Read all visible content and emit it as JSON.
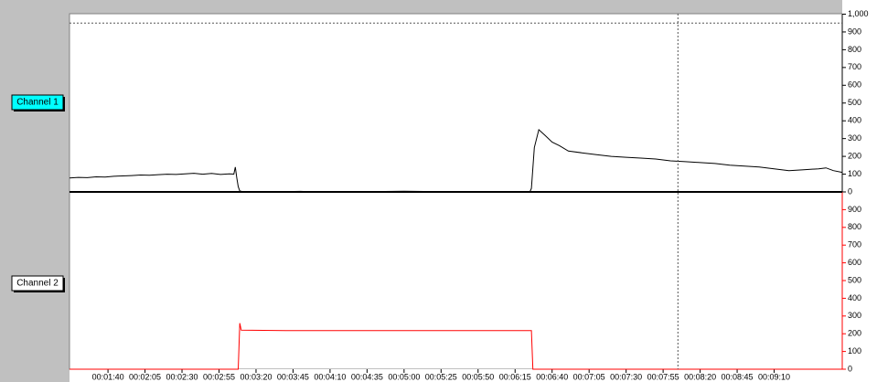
{
  "chart_data": [
    {
      "type": "line",
      "series": [
        {
          "name": "Channel 1",
          "color": "#000000",
          "values": [
            78,
            82,
            80,
            85,
            84,
            88,
            90,
            92,
            95,
            94,
            97,
            100,
            98,
            102,
            105,
            100,
            104,
            98,
            102,
            100,
            140,
            80,
            30,
            5,
            0,
            0,
            3,
            0,
            0,
            4,
            0,
            0,
            0,
            20,
            250,
            350,
            320,
            280,
            260,
            230,
            220,
            210,
            200,
            195,
            190,
            185,
            175,
            170,
            165,
            160,
            150,
            145,
            140,
            130,
            120,
            125,
            130,
            135,
            120,
            110
          ]
        }
      ],
      "x": [
        74,
        80,
        86,
        92,
        98,
        104,
        110,
        116,
        122,
        128,
        134,
        140,
        146,
        152,
        158,
        164,
        170,
        176,
        182,
        185,
        186,
        187,
        188,
        189,
        192,
        210,
        230,
        240,
        260,
        300,
        340,
        380,
        385,
        386,
        388,
        391,
        395,
        400,
        405,
        411,
        420,
        430,
        440,
        450,
        460,
        470,
        480,
        490,
        500,
        510,
        520,
        530,
        540,
        550,
        560,
        570,
        580,
        585,
        590,
        596
      ],
      "xlim": [
        74,
        596
      ],
      "ylim": [
        0,
        1000
      ],
      "yticks": [
        0,
        100,
        200,
        300,
        400,
        500,
        600,
        700,
        800,
        900,
        {
          "value": 1000,
          "label": "1,000"
        }
      ],
      "threshold": 950,
      "cursor_x": 485
    },
    {
      "type": "line",
      "series": [
        {
          "name": "Channel 2",
          "color": "#ff0000",
          "values": [
            0,
            0,
            260,
            220,
            218,
            218,
            0,
            0
          ]
        }
      ],
      "x": [
        74,
        188,
        189,
        190,
        220,
        386,
        387,
        596
      ],
      "xlim": [
        74,
        596
      ],
      "ylim": [
        0,
        1000
      ],
      "yticks": [
        0,
        100,
        200,
        300,
        400,
        500,
        600,
        700,
        800,
        900
      ],
      "xticks": [
        {
          "value": 100,
          "label": "00:01:40"
        },
        {
          "value": 125,
          "label": "00:02:05"
        },
        {
          "value": 150,
          "label": "00:02:30"
        },
        {
          "value": 175,
          "label": "00:02:55"
        },
        {
          "value": 200,
          "label": "00:03:20"
        },
        {
          "value": 225,
          "label": "00:03:45"
        },
        {
          "value": 250,
          "label": "00:04:10"
        },
        {
          "value": 275,
          "label": "00:04:35"
        },
        {
          "value": 300,
          "label": "00:05:00"
        },
        {
          "value": 325,
          "label": "00:05:25"
        },
        {
          "value": 350,
          "label": "00:05:50"
        },
        {
          "value": 375,
          "label": "00:06:15"
        },
        {
          "value": 400,
          "label": "00:06:40"
        },
        {
          "value": 425,
          "label": "00:07:05"
        },
        {
          "value": 450,
          "label": "00:07:30"
        },
        {
          "value": 475,
          "label": "00:07:55"
        },
        {
          "value": 500,
          "label": "00:08:20"
        },
        {
          "value": 525,
          "label": "00:08:45"
        },
        {
          "value": 550,
          "label": "00:09:10"
        }
      ]
    }
  ]
}
